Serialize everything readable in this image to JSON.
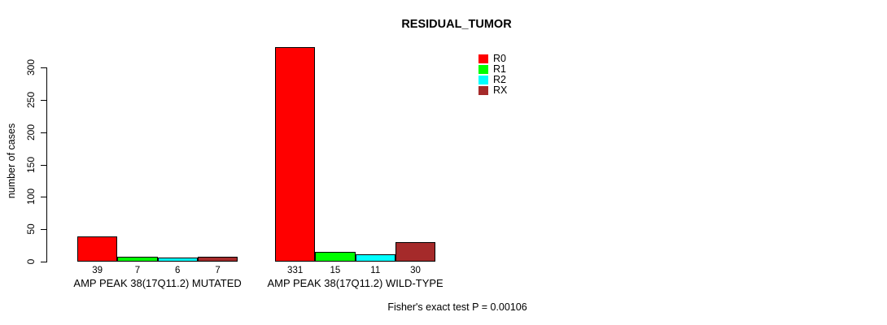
{
  "chart_data": {
    "type": "bar",
    "title": "RESIDUAL_TUMOR",
    "ylabel": "number of cases",
    "xlabel": "",
    "ylim": [
      0,
      300
    ],
    "yticks": [
      0,
      50,
      100,
      150,
      200,
      250,
      300
    ],
    "categories": [
      "AMP PEAK 38(17Q11.2) MUTATED",
      "AMP PEAK 38(17Q11.2) WILD-TYPE"
    ],
    "series": [
      {
        "name": "R0",
        "color": "#FF0000",
        "values": [
          39,
          331
        ]
      },
      {
        "name": "R1",
        "color": "#00FF00",
        "values": [
          7,
          15
        ]
      },
      {
        "name": "R2",
        "color": "#00FFFF",
        "values": [
          6,
          11
        ]
      },
      {
        "name": "RX",
        "color": "#A52A2A",
        "values": [
          7,
          30
        ]
      }
    ],
    "bar_value_labels": [
      [
        39,
        7,
        6,
        7
      ],
      [
        331,
        15,
        11,
        30
      ]
    ],
    "legend_position": "top-right",
    "legend_entries": [
      "R0",
      "R1",
      "R2",
      "RX"
    ],
    "grid": false,
    "bar_border_color": "#000000",
    "annotation": "Fisher's exact test P = 0.00106"
  }
}
